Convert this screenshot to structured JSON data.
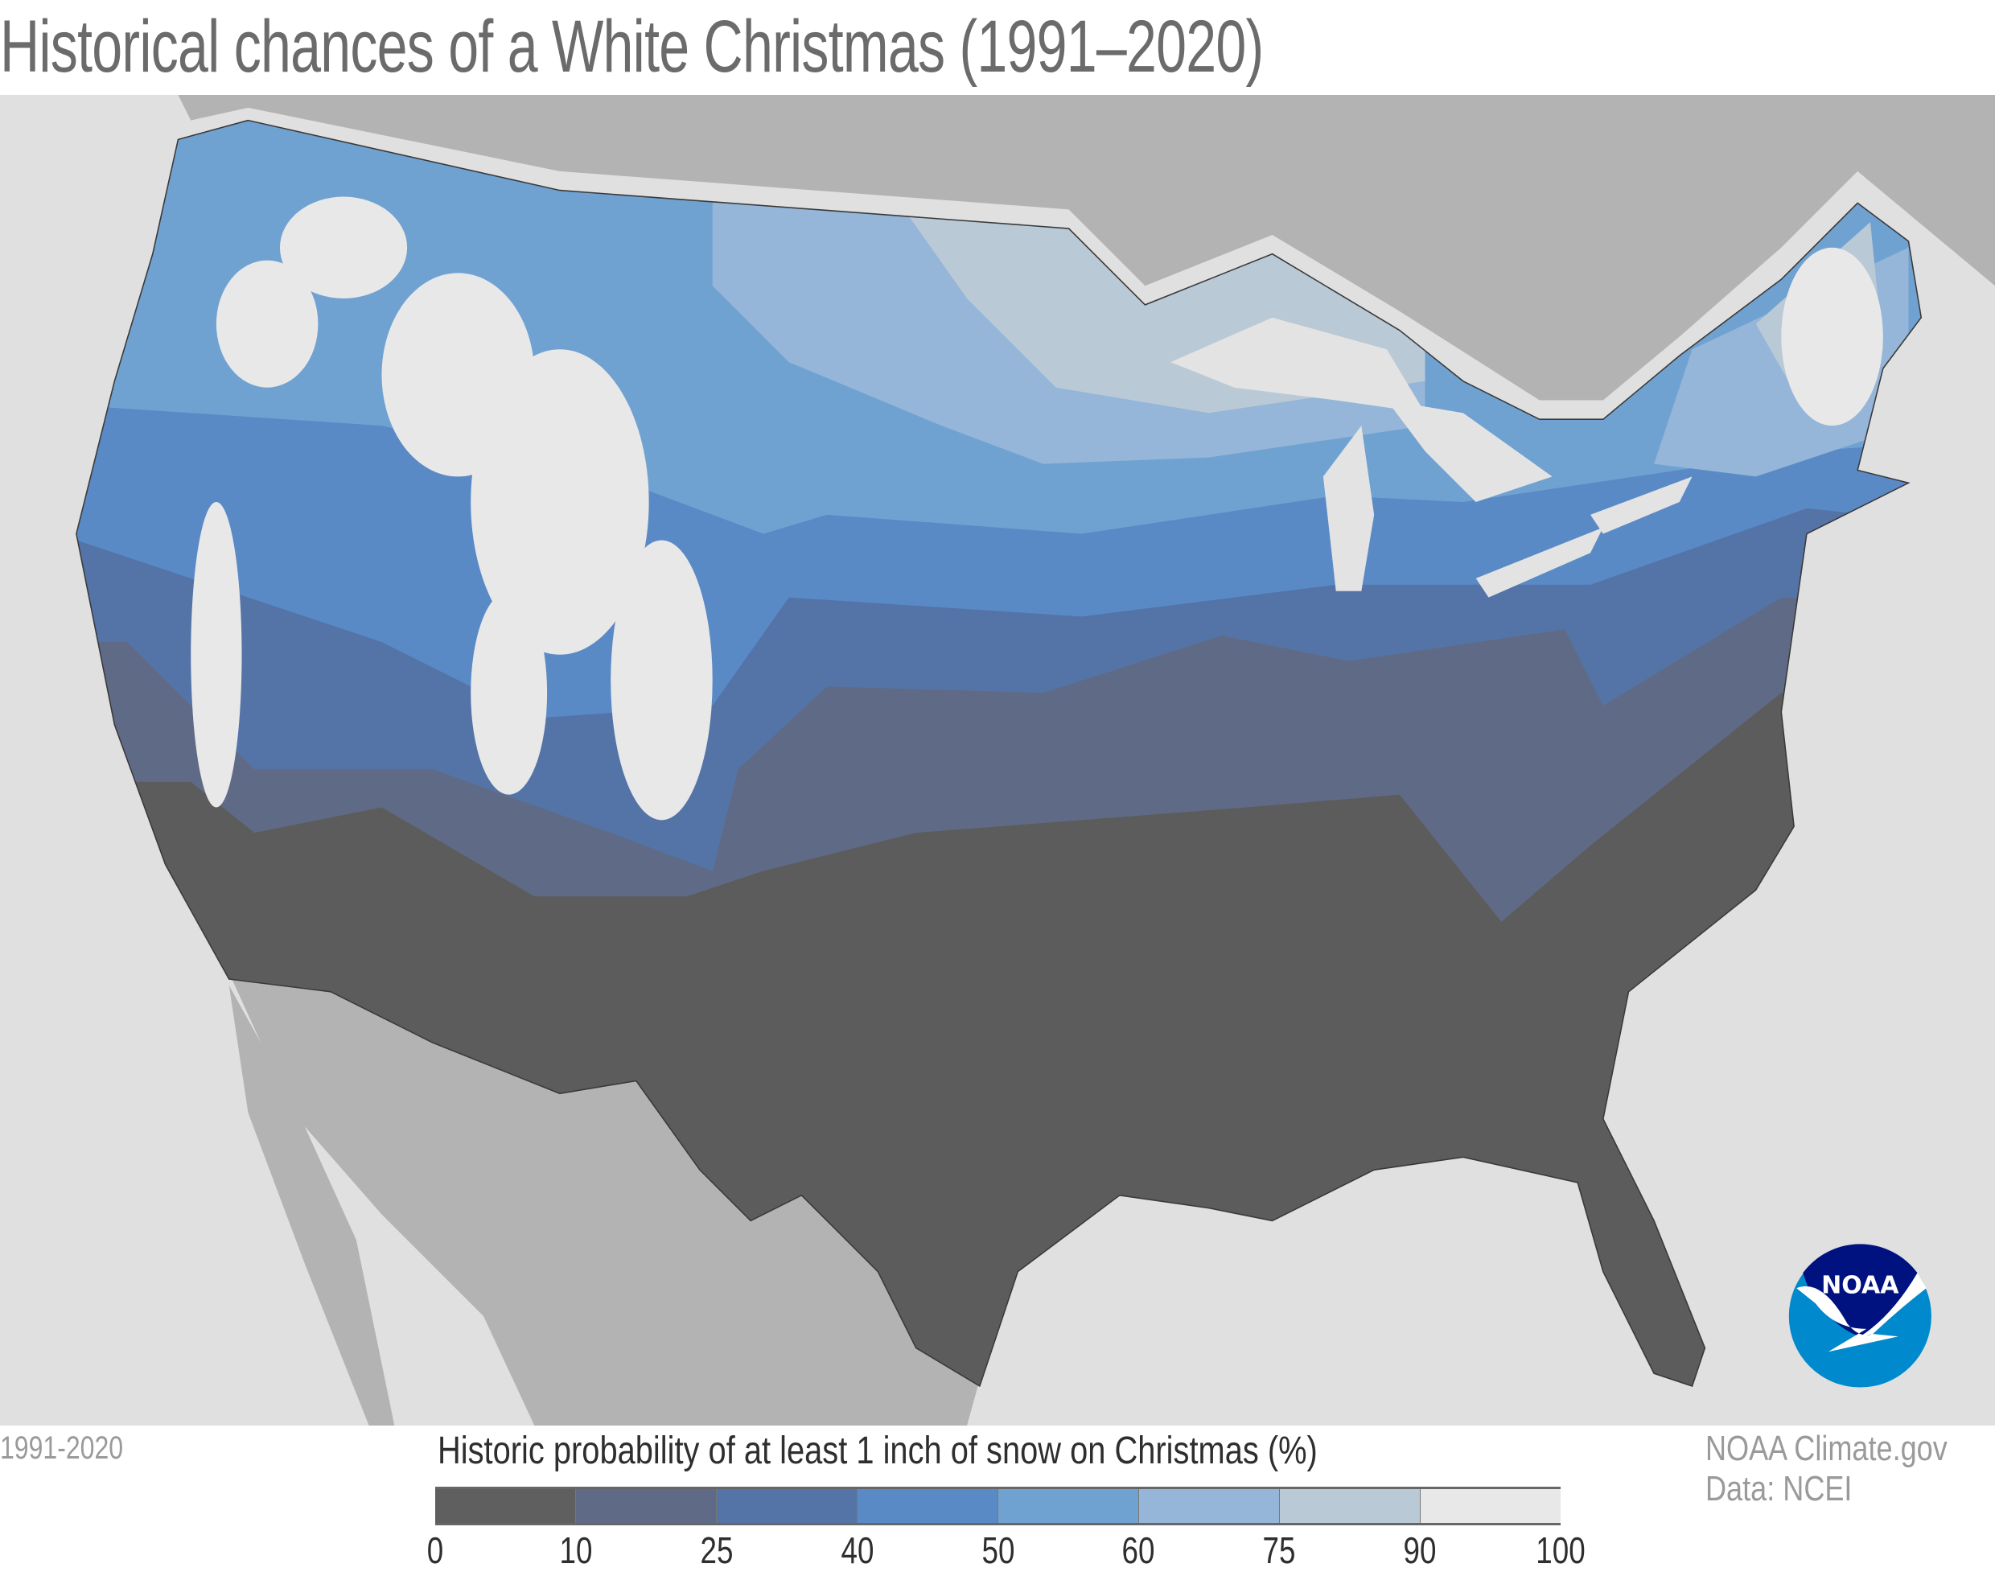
{
  "title": "Historical chances of a White Christmas (1991–2020)",
  "period": "1991-2020",
  "legend": {
    "title": "Historic probability of at least 1 inch of snow on Christmas (%)",
    "ticks": [
      "0",
      "10",
      "25",
      "40",
      "50",
      "60",
      "75",
      "90",
      "100"
    ],
    "colors": [
      "#5f5f5f",
      "#5f6b86",
      "#5474a8",
      "#5a8ac6",
      "#70a2d1",
      "#95b6d9",
      "#bac9d6",
      "#e8e8e8"
    ]
  },
  "credits": {
    "line1": "NOAA Climate.gov",
    "line2": "Data: NCEI"
  },
  "logo": {
    "text": "NOAA",
    "colors": {
      "dark": "#00127f",
      "light": "#0089cc"
    }
  },
  "map_colors": {
    "ocean": "#e0e0e0",
    "neighbor_land": "#b3b3b3",
    "lakes": "#e3e3e3"
  }
}
